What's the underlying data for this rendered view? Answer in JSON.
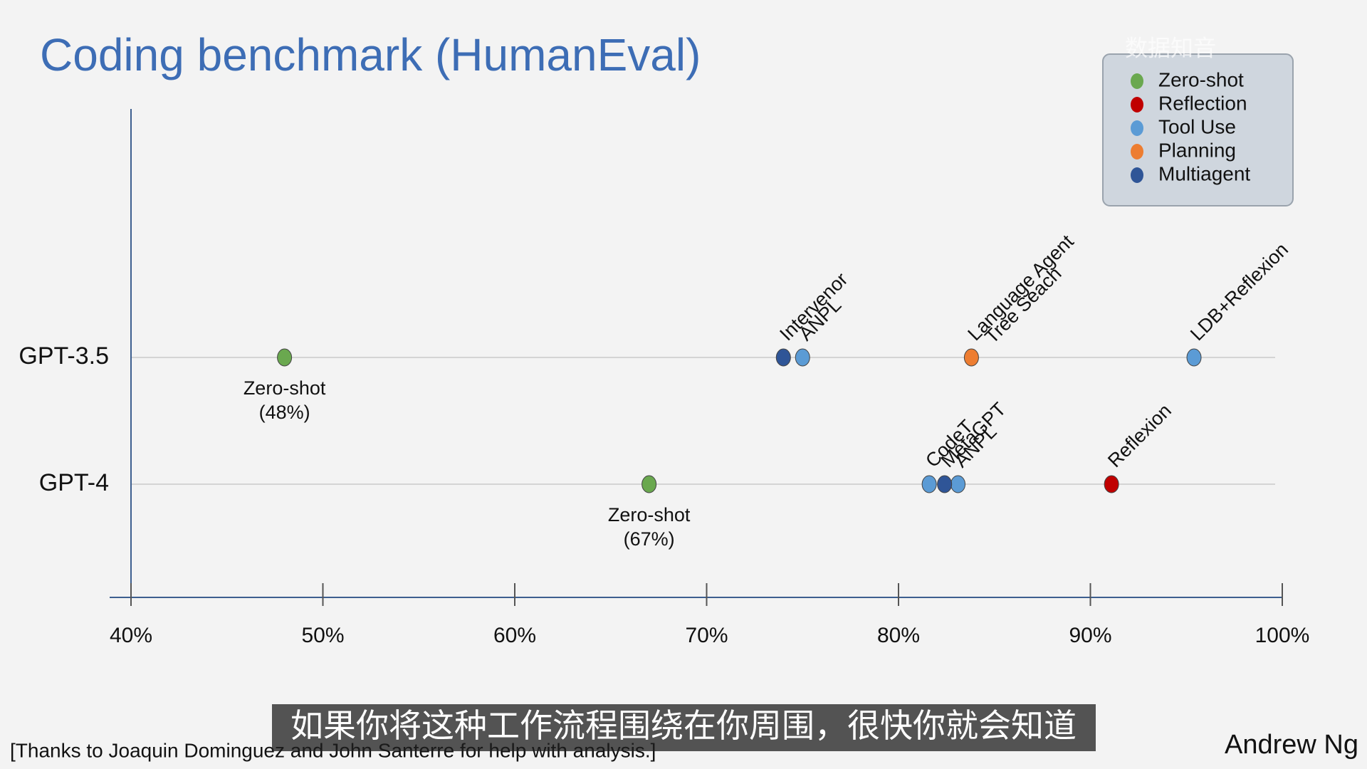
{
  "chart_data": {
    "type": "dot",
    "title": "Coding benchmark (HumanEval)",
    "rows": [
      "GPT-3.5",
      "GPT-4"
    ],
    "xlim": [
      40,
      100
    ],
    "xticks": [
      {
        "value": 40,
        "label": "40%"
      },
      {
        "value": 50,
        "label": "50%"
      },
      {
        "value": 60,
        "label": "60%"
      },
      {
        "value": 70,
        "label": "70%"
      },
      {
        "value": 80,
        "label": "80%"
      },
      {
        "value": 90,
        "label": "90%"
      },
      {
        "value": 100,
        "label": "100%"
      }
    ],
    "grid": true,
    "legend": "top-right",
    "series": [
      {
        "name": "Zero-shot",
        "color": "#6aa84f",
        "categories": [
          "GPT-3.5",
          "GPT-4"
        ],
        "x": [
          48,
          67
        ],
        "labels": [
          "Zero-shot",
          "Zero-shot"
        ],
        "value_labels": [
          "(48%)",
          "(67%)"
        ]
      },
      {
        "name": "Reflection",
        "color": "#c00000",
        "categories": [
          "GPT-4"
        ],
        "x": [
          91.1
        ],
        "labels": [
          "Reflexion"
        ],
        "value_labels": [
          null
        ]
      },
      {
        "name": "Tool Use",
        "color": "#5b9bd5",
        "categories": [
          "GPT-3.5",
          "GPT-3.5",
          "GPT-4",
          "GPT-4"
        ],
        "x": [
          75,
          95.4,
          81.6,
          83.1
        ],
        "labels": [
          "ANPL",
          "LDB+Reflexion",
          "CodeT",
          "ANPL"
        ],
        "value_labels": [
          null,
          null,
          null,
          null
        ]
      },
      {
        "name": "Planning",
        "color": "#ed7d31",
        "categories": [
          "GPT-3.5"
        ],
        "x": [
          83.8
        ],
        "labels": [
          [
            "Language Agent",
            "Tree Seach"
          ]
        ],
        "value_labels": [
          null
        ]
      },
      {
        "name": "Multiagent",
        "color": "#2f5597",
        "categories": [
          "GPT-3.5",
          "GPT-4"
        ],
        "x": [
          74,
          82.4
        ],
        "labels": [
          "Intervenor",
          "MetaGPT"
        ],
        "value_labels": [
          null,
          null
        ]
      }
    ]
  },
  "footnote": "[Thanks to Joaquin Dominguez and John Santerre for help with analysis.]",
  "author": "Andrew Ng",
  "watermark": "数据知音",
  "subtitle": "如果你将这种工作流程围绕在你周围，很快你就会知道"
}
